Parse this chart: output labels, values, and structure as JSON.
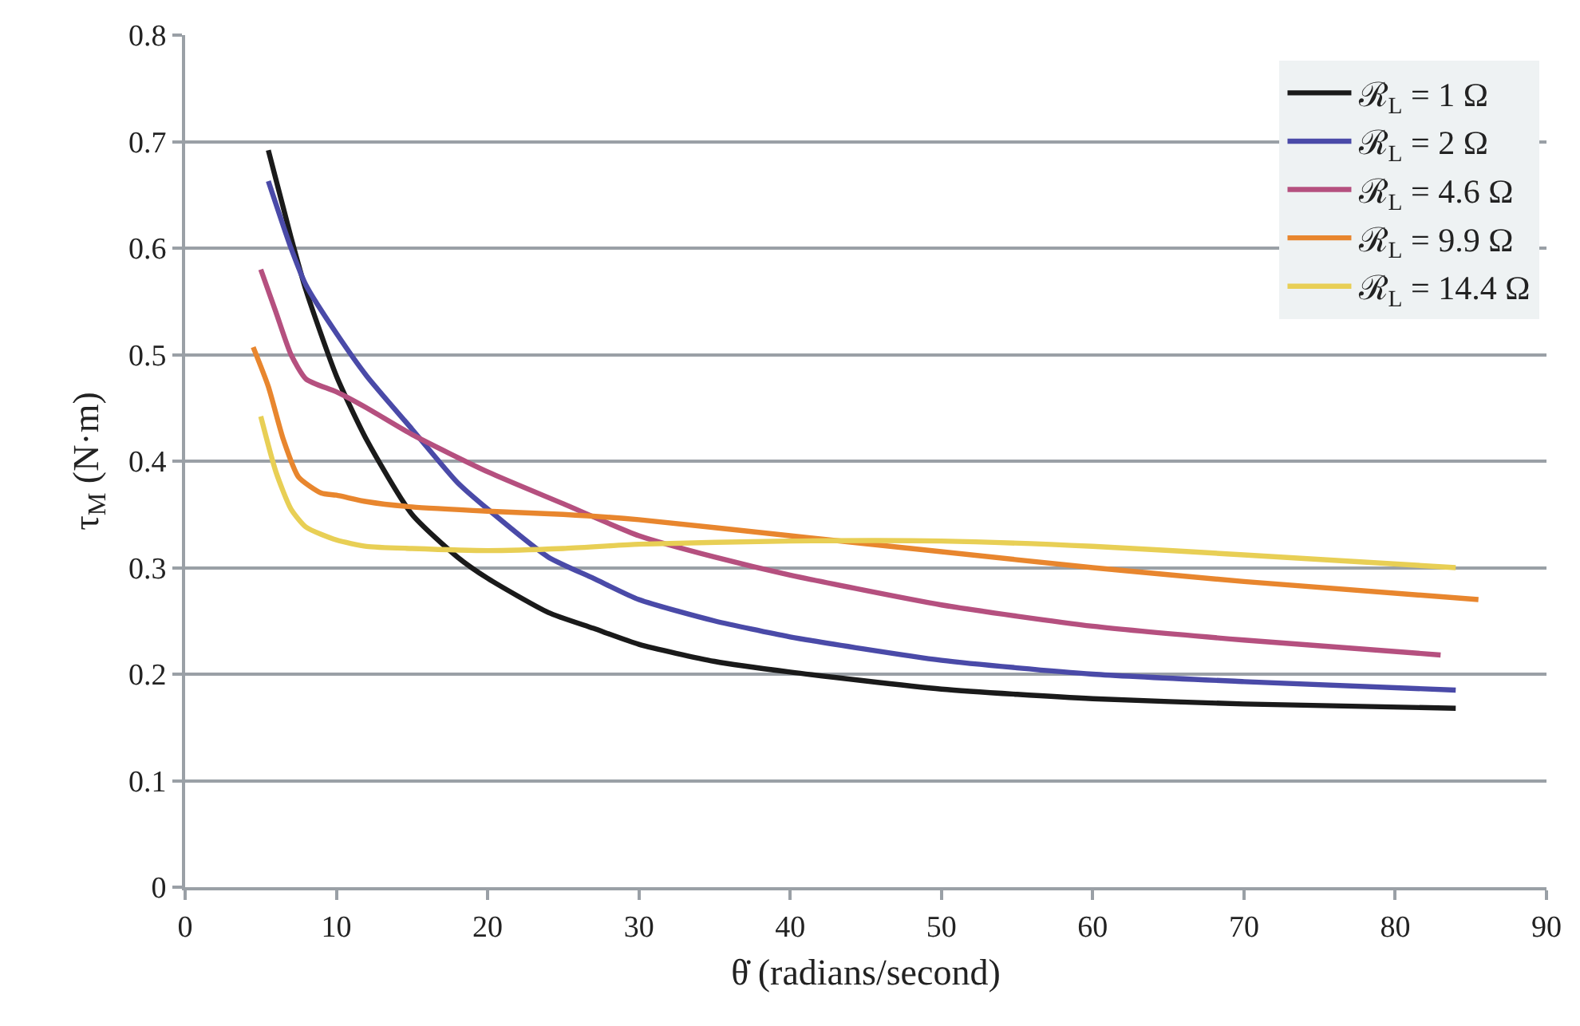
{
  "chart_data": {
    "type": "line",
    "xlabel": "θ̇ (radians/second)",
    "ylabel": "τ$_{M}$ (N·m)",
    "xlim": [
      0,
      90
    ],
    "xticks": [
      0,
      10,
      20,
      30,
      40,
      50,
      60,
      70,
      80,
      90
    ],
    "ylim": [
      0,
      0.8
    ],
    "yticks": [
      0,
      0.1,
      0.2,
      0.3,
      0.4,
      0.5,
      0.6,
      0.7,
      0.8
    ],
    "grid": "y",
    "legend": "top right",
    "marker": "none",
    "line_style": "solid",
    "series": [
      {
        "name": "ℛ$_{L}$ = 1 Ω",
        "color": "#1a1a1a",
        "x": [
          5.5,
          7,
          8,
          10,
          12,
          15,
          18,
          20,
          24,
          27,
          30,
          35,
          40,
          50,
          60,
          70,
          84
        ],
        "values": [
          0.692,
          0.61,
          0.56,
          0.48,
          0.42,
          0.35,
          0.31,
          0.29,
          0.258,
          0.243,
          0.228,
          0.212,
          0.202,
          0.186,
          0.177,
          0.172,
          0.168
        ]
      },
      {
        "name": "ℛ$_{L}$ = 2 Ω",
        "color": "#4a4aa8",
        "x": [
          5.5,
          7,
          8,
          10,
          12,
          15,
          18,
          20,
          24,
          27,
          30,
          35,
          40,
          50,
          60,
          70,
          84
        ],
        "values": [
          0.663,
          0.6,
          0.565,
          0.52,
          0.48,
          0.43,
          0.38,
          0.355,
          0.31,
          0.29,
          0.27,
          0.25,
          0.235,
          0.213,
          0.2,
          0.193,
          0.185
        ]
      },
      {
        "name": "ℛ$_{L}$ = 4.6 Ω",
        "color": "#b5507f",
        "x": [
          5,
          6,
          7,
          8,
          10,
          12,
          15,
          20,
          25,
          30,
          35,
          40,
          50,
          60,
          70,
          83
        ],
        "values": [
          0.58,
          0.54,
          0.5,
          0.477,
          0.465,
          0.45,
          0.425,
          0.39,
          0.36,
          0.33,
          0.31,
          0.293,
          0.265,
          0.245,
          0.232,
          0.218
        ]
      },
      {
        "name": "ℛ$_{L}$ = 9.9 Ω",
        "color": "#e8862e",
        "x": [
          4.5,
          5.5,
          6.5,
          7.5,
          9,
          10,
          12,
          15,
          20,
          25,
          30,
          40,
          50,
          60,
          70,
          85.5
        ],
        "values": [
          0.507,
          0.47,
          0.42,
          0.385,
          0.37,
          0.368,
          0.362,
          0.357,
          0.353,
          0.35,
          0.345,
          0.33,
          0.315,
          0.3,
          0.287,
          0.27
        ]
      },
      {
        "name": "ℛ$_{L}$ = 14.4 Ω",
        "color": "#e8cf55",
        "x": [
          5,
          6,
          7,
          8,
          10,
          12,
          15,
          20,
          25,
          30,
          40,
          50,
          60,
          70,
          84
        ],
        "values": [
          0.442,
          0.39,
          0.355,
          0.338,
          0.326,
          0.32,
          0.318,
          0.316,
          0.318,
          0.322,
          0.325,
          0.325,
          0.32,
          0.312,
          0.3
        ]
      }
    ]
  }
}
